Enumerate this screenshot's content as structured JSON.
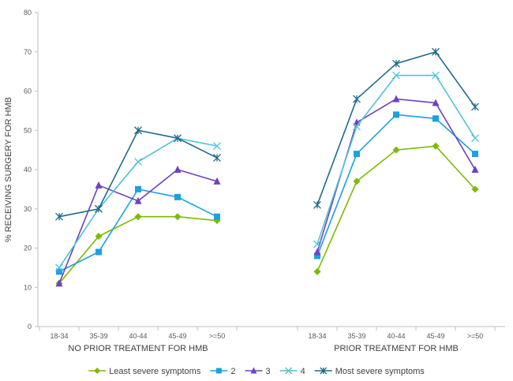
{
  "chart_data": {
    "type": "line",
    "ylabel": "% RECEIVING SURGERY FOR HMB",
    "ylim": [
      0,
      80
    ],
    "yticks": [
      "0",
      "10",
      "20",
      "30",
      "40",
      "50",
      "60",
      "70",
      "80"
    ],
    "grid": false,
    "legend": "bottom",
    "groups": [
      {
        "label": "NO PRIOR TREATMENT FOR HMB",
        "categories": [
          "18-34",
          "35-39",
          "40-44",
          "45-49",
          ">=50"
        ],
        "series": [
          {
            "name": "Least severe symptoms",
            "values": [
              11,
              23,
              28,
              28,
              27
            ]
          },
          {
            "name": "2",
            "values": [
              14,
              19,
              35,
              33,
              28
            ]
          },
          {
            "name": "3",
            "values": [
              11,
              36,
              32,
              40,
              37
            ]
          },
          {
            "name": "4",
            "values": [
              15,
              30,
              42,
              48,
              46
            ]
          },
          {
            "name": "Most severe symptoms",
            "values": [
              28,
              30,
              50,
              48,
              43
            ]
          }
        ]
      },
      {
        "label": "PRIOR TREATMENT FOR HMB",
        "categories": [
          "18-34",
          "35-39",
          "40-44",
          "45-49",
          ">=50"
        ],
        "series": [
          {
            "name": "Least severe symptoms",
            "values": [
              14,
              37,
              45,
              46,
              35
            ]
          },
          {
            "name": "2",
            "values": [
              18,
              44,
              54,
              53,
              44
            ]
          },
          {
            "name": "3",
            "values": [
              19,
              52,
              58,
              57,
              40
            ]
          },
          {
            "name": "4",
            "values": [
              21,
              51,
              64,
              64,
              48
            ]
          },
          {
            "name": "Most severe symptoms",
            "values": [
              31,
              58,
              67,
              70,
              56
            ]
          }
        ]
      }
    ],
    "series_styles": [
      {
        "color": "#7fba00",
        "marker": "diamond"
      },
      {
        "color": "#1ba1e2",
        "marker": "square"
      },
      {
        "color": "#6f42c1",
        "marker": "triangle"
      },
      {
        "color": "#4fc3d9",
        "marker": "x"
      },
      {
        "color": "#1f6a8a",
        "marker": "star"
      }
    ],
    "legend_labels": [
      "Least severe symptoms",
      "2",
      "3",
      "4",
      "Most severe symptoms"
    ]
  }
}
